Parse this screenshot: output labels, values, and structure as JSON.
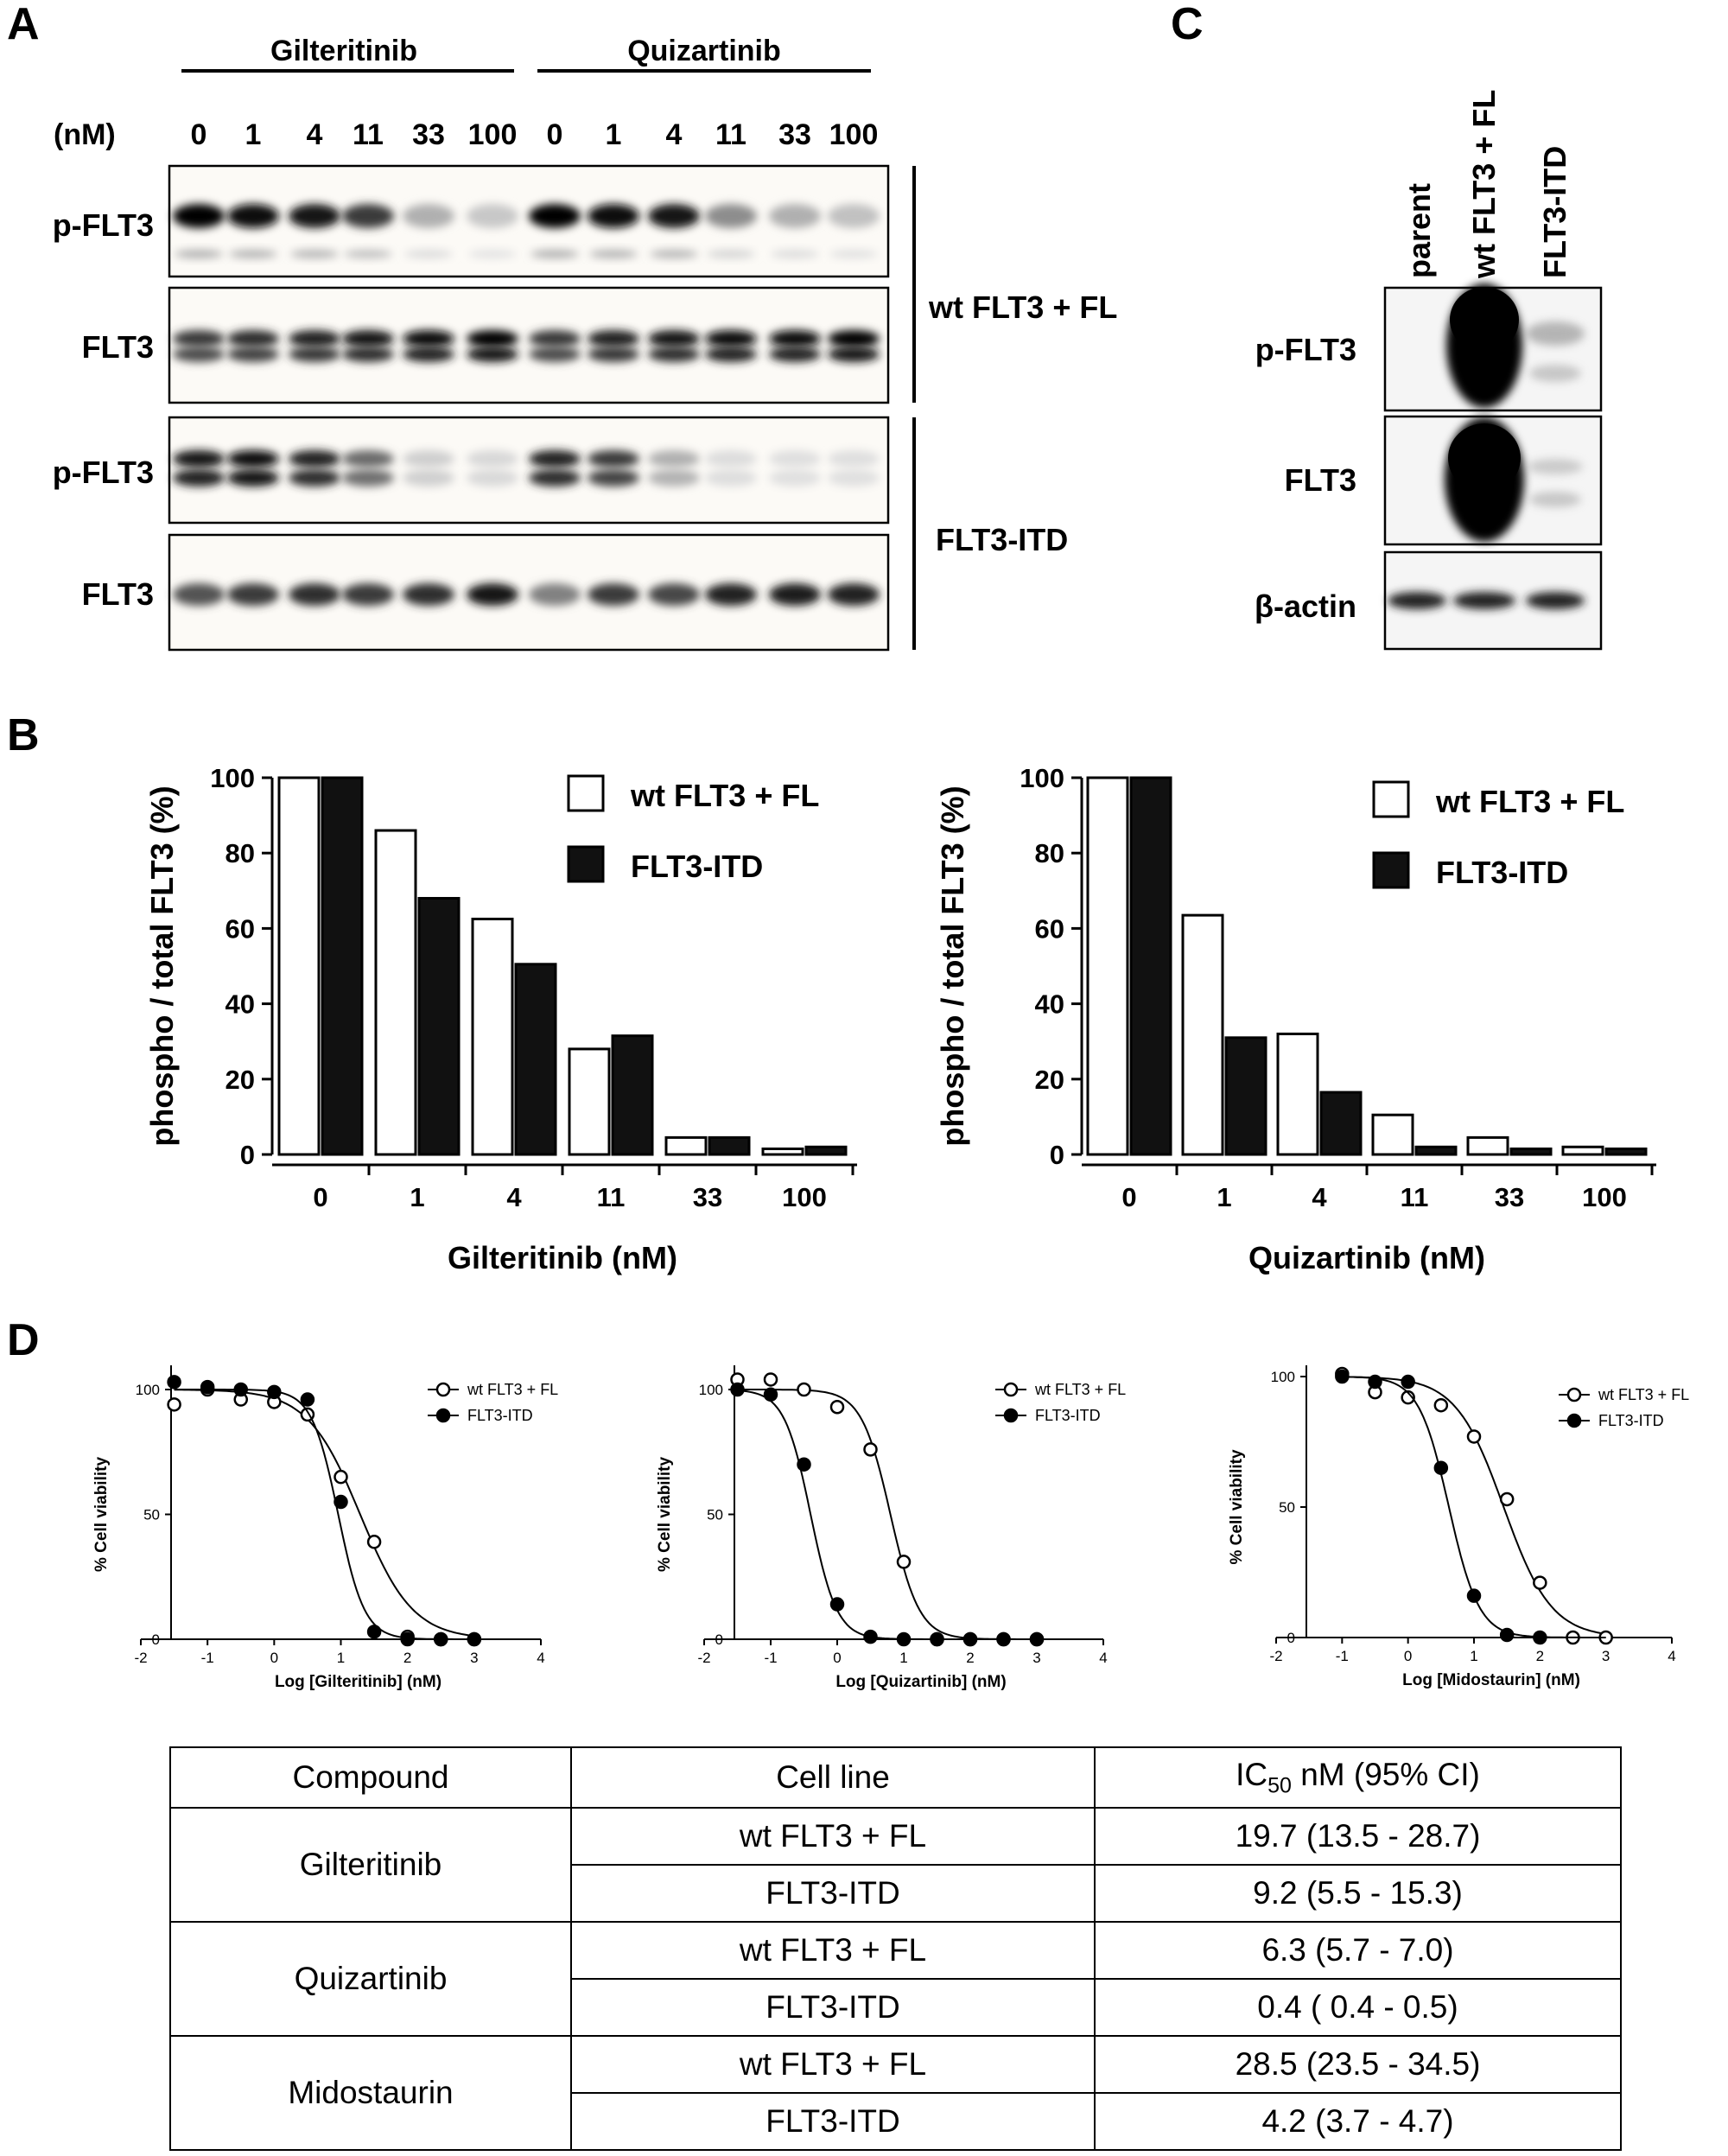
{
  "panels": {
    "A": "A",
    "B": "B",
    "C": "C",
    "D": "D"
  },
  "panel_a": {
    "drug_headers": [
      "Gilteritinib",
      "Quizartinib"
    ],
    "unit_label": "(nM)",
    "concentrations": [
      "0",
      "1",
      "4",
      "11",
      "33",
      "100",
      "0",
      "1",
      "4",
      "11",
      "33",
      "100"
    ],
    "blot_labels": [
      "p-FLT3",
      "FLT3",
      "p-FLT3",
      "FLT3"
    ],
    "group_labels": [
      "wt FLT3 + FL",
      "FLT3-ITD"
    ],
    "band_intensity": {
      "wt_pflt3": [
        1.0,
        0.95,
        0.92,
        0.75,
        0.25,
        0.15,
        1.0,
        0.95,
        0.92,
        0.4,
        0.25,
        0.18
      ],
      "wt_flt3": [
        0.75,
        0.8,
        0.85,
        0.9,
        0.95,
        1.0,
        0.75,
        0.85,
        0.9,
        0.95,
        0.95,
        1.0
      ],
      "itd_pflt3": [
        0.9,
        0.95,
        0.85,
        0.55,
        0.12,
        0.08,
        0.85,
        0.75,
        0.25,
        0.06,
        0.05,
        0.05
      ],
      "itd_flt3": [
        0.65,
        0.75,
        0.8,
        0.75,
        0.8,
        0.9,
        0.45,
        0.75,
        0.7,
        0.85,
        0.88,
        0.85
      ]
    }
  },
  "panel_c": {
    "lanes": [
      "parent",
      "wt FLT3 + FL",
      "FLT3-ITD"
    ],
    "blot_labels": [
      "p-FLT3",
      "FLT3",
      "β-actin"
    ]
  },
  "chart_data": [
    {
      "type": "bar",
      "categories": [
        "0",
        "1",
        "4",
        "11",
        "33",
        "100"
      ],
      "series": [
        {
          "name": "wt FLT3 + FL",
          "values": [
            100,
            86,
            62.5,
            28,
            4.5,
            1.5
          ]
        },
        {
          "name": "FLT3-ITD",
          "values": [
            100,
            68,
            50.5,
            31.5,
            4.5,
            2
          ]
        }
      ],
      "xlabel": "Gilteritinib (nM)",
      "ylabel": "phospho / total FLT3 (%)",
      "ylim": [
        0,
        100
      ],
      "yticks": [
        "0",
        "20",
        "40",
        "60",
        "80",
        "100"
      ],
      "legend": "top-right",
      "colors": {
        "wt FLT3 + FL": "#ffffff",
        "FLT3-ITD": "#111111"
      }
    },
    {
      "type": "bar",
      "categories": [
        "0",
        "1",
        "4",
        "11",
        "33",
        "100"
      ],
      "series": [
        {
          "name": "wt FLT3 + FL",
          "values": [
            100,
            63.5,
            32,
            10.5,
            4.5,
            2
          ]
        },
        {
          "name": "FLT3-ITD",
          "values": [
            100,
            31,
            16.5,
            2,
            1.5,
            1.5
          ]
        }
      ],
      "xlabel": "Quizartinib (nM)",
      "ylabel": "phospho / total FLT3 (%)",
      "ylim": [
        0,
        100
      ],
      "yticks": [
        "0",
        "20",
        "40",
        "60",
        "80",
        "100"
      ],
      "legend": "top-right",
      "colors": {
        "wt FLT3 + FL": "#ffffff",
        "FLT3-ITD": "#111111"
      }
    },
    {
      "type": "scatter",
      "xlabel": "Log [Gilteritinib] (nM)",
      "ylabel": "% Cell viability",
      "xlim": [
        -2,
        4
      ],
      "ylim": [
        0,
        110
      ],
      "xticks": [
        "-2",
        "-1",
        "0",
        "1",
        "2",
        "3",
        "4"
      ],
      "yticks": [
        "0",
        "50",
        "100"
      ],
      "legend": "top-right",
      "series": [
        {
          "name": "wt FLT3 + FL",
          "marker": "open",
          "ic50_log": 1.29,
          "hill": 1.1,
          "x": [
            -1.5,
            -1.0,
            -0.5,
            0.0,
            0.5,
            1.0,
            1.5,
            2.0,
            2.5,
            3.0
          ],
          "y": [
            94,
            100,
            96,
            95,
            90,
            65,
            39,
            1,
            0,
            0
          ]
        },
        {
          "name": "FLT3-ITD",
          "marker": "filled",
          "ic50_log": 0.96,
          "hill": 2.2,
          "x": [
            -1.5,
            -1.0,
            -0.5,
            0.0,
            0.5,
            1.0,
            1.5,
            2.0,
            2.5,
            3.0
          ],
          "y": [
            103,
            101,
            100,
            99,
            96,
            55,
            3,
            0,
            0,
            0
          ]
        }
      ]
    },
    {
      "type": "scatter",
      "xlabel": "Log [Quizartinib] (nM)",
      "ylabel": "% Cell viability",
      "xlim": [
        -2,
        4
      ],
      "ylim": [
        0,
        110
      ],
      "xticks": [
        "-2",
        "-1",
        "0",
        "1",
        "2",
        "3",
        "4"
      ],
      "yticks": [
        "0",
        "50",
        "100"
      ],
      "legend": "top-right",
      "series": [
        {
          "name": "wt FLT3 + FL",
          "marker": "open",
          "ic50_log": 0.8,
          "hill": 2.0,
          "x": [
            -1.5,
            -1.0,
            -0.5,
            0.0,
            0.5,
            1.0,
            1.5,
            2.0,
            2.5,
            3.0
          ],
          "y": [
            104,
            104,
            100,
            93,
            76,
            31,
            0,
            0,
            0,
            0
          ]
        },
        {
          "name": "FLT3-ITD",
          "marker": "filled",
          "ic50_log": -0.4,
          "hill": 2.2,
          "x": [
            -1.5,
            -1.0,
            -0.5,
            0.0,
            0.5,
            1.0,
            1.5,
            2.0,
            2.5,
            3.0
          ],
          "y": [
            100,
            98,
            70,
            14,
            1,
            0,
            0,
            0,
            0,
            0
          ]
        }
      ]
    },
    {
      "type": "scatter",
      "xlabel": "Log [Midostaurin] (nM)",
      "ylabel": "% Cell viability",
      "xlim": [
        -2,
        4
      ],
      "ylim": [
        0,
        110
      ],
      "xticks": [
        "-2",
        "-1",
        "0",
        "1",
        "2",
        "3",
        "4"
      ],
      "yticks": [
        "0",
        "50",
        "100"
      ],
      "legend": "top-right",
      "series": [
        {
          "name": "wt FLT3 + FL",
          "marker": "open",
          "ic50_log": 1.45,
          "hill": 1.2,
          "x": [
            -1.0,
            -0.5,
            0.0,
            0.5,
            1.0,
            1.5,
            2.0,
            2.5,
            3.0
          ],
          "y": [
            101,
            94,
            92,
            89,
            77,
            53,
            21,
            0,
            0
          ]
        },
        {
          "name": "FLT3-ITD",
          "marker": "filled",
          "ic50_log": 0.62,
          "hill": 1.9,
          "x": [
            -1.0,
            -0.5,
            0.0,
            0.5,
            1.0,
            1.5,
            2.0
          ],
          "y": [
            100,
            98,
            98,
            65,
            16,
            1,
            0
          ]
        }
      ]
    }
  ],
  "ic50_table": {
    "headers": {
      "compound": "Compound",
      "cell_line": "Cell line",
      "ic50_prefix": "IC",
      "ic50_sub": "50",
      "ic50_suffix": " nM (95% CI)"
    },
    "rows": [
      {
        "compound": "Gilteritinib",
        "lines": [
          {
            "cell": "wt FLT3 + FL",
            "ic50": "19.7 (13.5 - 28.7)"
          },
          {
            "cell": "FLT3-ITD",
            "ic50": "9.2 (5.5 - 15.3)"
          }
        ]
      },
      {
        "compound": "Quizartinib",
        "lines": [
          {
            "cell": "wt FLT3 + FL",
            "ic50": "6.3 (5.7 - 7.0)"
          },
          {
            "cell": "FLT3-ITD",
            "ic50": "0.4 ( 0.4 - 0.5)"
          }
        ]
      },
      {
        "compound": "Midostaurin",
        "lines": [
          {
            "cell": "wt FLT3 + FL",
            "ic50": "28.5 (23.5 - 34.5)"
          },
          {
            "cell": "FLT3-ITD",
            "ic50": "4.2 (3.7 - 4.7)"
          }
        ]
      }
    ]
  }
}
